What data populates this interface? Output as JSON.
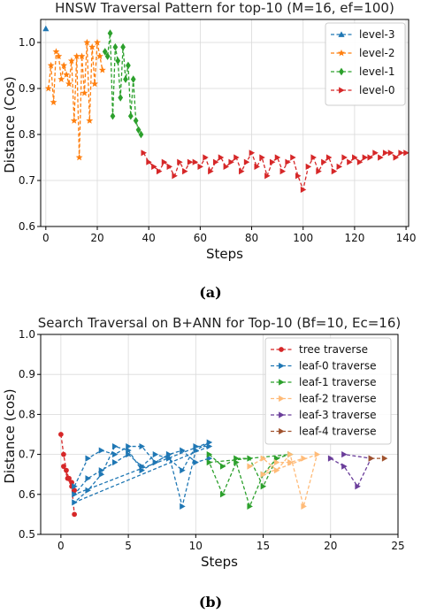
{
  "chart_data": [
    {
      "type": "line",
      "panel": "(a)",
      "title": "HNSW Traversal Pattern for top-10 (M=16, ef=100)",
      "xlabel": "Steps",
      "ylabel": "Distance (Cos)",
      "xlim": [
        -2,
        141
      ],
      "ylim": [
        0.6,
        1.05
      ],
      "xticks": [
        0,
        20,
        40,
        60,
        80,
        100,
        120,
        140
      ],
      "yticks": [
        0.6,
        0.7,
        0.8,
        0.9,
        1.0
      ],
      "grid": true,
      "legend_position": "top-right",
      "series": [
        {
          "name": "level-3",
          "color": "#1f77b4",
          "marker": "triangle-up",
          "x": [
            0
          ],
          "y": [
            1.03
          ]
        },
        {
          "name": "level-2",
          "color": "#ff7f0e",
          "marker": "star",
          "x": [
            1,
            2,
            3,
            4,
            5,
            6,
            7,
            8,
            9,
            10,
            11,
            12,
            13,
            14,
            15,
            16,
            17,
            18,
            19,
            20,
            21,
            22
          ],
          "y": [
            0.9,
            0.95,
            0.87,
            0.98,
            0.97,
            0.92,
            0.95,
            0.93,
            0.91,
            0.96,
            0.83,
            0.97,
            0.75,
            0.97,
            0.89,
            1.0,
            0.83,
            0.99,
            0.91,
            1.0,
            0.97,
            0.94
          ]
        },
        {
          "name": "level-1",
          "color": "#2ca02c",
          "marker": "diamond",
          "x": [
            23,
            24,
            25,
            26,
            27,
            28,
            29,
            30,
            31,
            32,
            33,
            34,
            35,
            36,
            37
          ],
          "y": [
            0.98,
            0.97,
            1.02,
            0.84,
            0.99,
            0.96,
            0.88,
            0.99,
            0.92,
            0.95,
            0.84,
            0.92,
            0.83,
            0.81,
            0.8
          ]
        },
        {
          "name": "level-0",
          "color": "#d62728",
          "marker": "triangle-right",
          "x": [
            38,
            40,
            42,
            44,
            46,
            48,
            50,
            52,
            54,
            56,
            58,
            60,
            62,
            64,
            66,
            68,
            70,
            72,
            74,
            76,
            78,
            80,
            82,
            84,
            86,
            88,
            90,
            92,
            94,
            96,
            98,
            100,
            102,
            104,
            106,
            108,
            110,
            112,
            114,
            116,
            118,
            120,
            122,
            124,
            126,
            128,
            130,
            132,
            134,
            136,
            138,
            140
          ],
          "y": [
            0.76,
            0.74,
            0.73,
            0.72,
            0.74,
            0.73,
            0.71,
            0.74,
            0.72,
            0.74,
            0.74,
            0.73,
            0.75,
            0.72,
            0.74,
            0.75,
            0.73,
            0.74,
            0.75,
            0.72,
            0.74,
            0.76,
            0.73,
            0.75,
            0.71,
            0.74,
            0.75,
            0.72,
            0.74,
            0.75,
            0.71,
            0.68,
            0.73,
            0.75,
            0.72,
            0.74,
            0.75,
            0.72,
            0.73,
            0.75,
            0.74,
            0.75,
            0.74,
            0.75,
            0.75,
            0.76,
            0.75,
            0.76,
            0.76,
            0.75,
            0.76,
            0.76
          ]
        }
      ]
    },
    {
      "type": "line",
      "panel": "(b)",
      "title": "Search Traversal on B+ANN for Top-10 (Bf=10, Ec=16)",
      "xlabel": "Steps",
      "ylabel": "Distance (cos)",
      "xlim": [
        -1.5,
        25
      ],
      "ylim": [
        0.5,
        1.0
      ],
      "xticks": [
        0,
        5,
        10,
        15,
        20,
        25
      ],
      "yticks": [
        0.5,
        0.6,
        0.7,
        0.8,
        0.9,
        1.0
      ],
      "grid": true,
      "legend_position": "top-right",
      "series": [
        {
          "name": "tree traverse",
          "color": "#d62728",
          "marker": "dot",
          "x": [
            0,
            0.2,
            0.4,
            0.6,
            0.8,
            1.0,
            0.2,
            0.5,
            0.8,
            1.0
          ],
          "y": [
            0.75,
            0.7,
            0.66,
            0.64,
            0.63,
            0.61,
            0.67,
            0.64,
            0.62,
            0.55
          ]
        },
        {
          "name": "leaf-0 traverse",
          "color": "#1f77b4",
          "marker": "triangle-right",
          "x": [
            1,
            2,
            3,
            4,
            5,
            6,
            7,
            8,
            9,
            10,
            11,
            1,
            2,
            3,
            4,
            5,
            6,
            7,
            8,
            9,
            10,
            11,
            1,
            2,
            3,
            4,
            5,
            6,
            7,
            8,
            9,
            10,
            11
          ],
          "y": [
            0.62,
            0.69,
            0.71,
            0.7,
            0.72,
            0.72,
            0.68,
            0.7,
            0.57,
            0.71,
            0.73,
            0.6,
            0.64,
            0.66,
            0.68,
            0.7,
            0.67,
            0.7,
            0.69,
            0.66,
            0.72,
            0.72,
            0.58,
            0.61,
            0.65,
            0.72,
            0.71,
            0.66,
            0.68,
            0.7,
            0.71,
            0.68,
            0.69
          ]
        },
        {
          "name": "leaf-1 traverse",
          "color": "#2ca02c",
          "marker": "triangle-right",
          "x": [
            11,
            12,
            13,
            14,
            15,
            16,
            17,
            11,
            12,
            13,
            14,
            15,
            16
          ],
          "y": [
            0.7,
            0.67,
            0.69,
            0.69,
            0.62,
            0.69,
            0.7,
            0.68,
            0.6,
            0.68,
            0.57,
            0.65,
            0.69
          ]
        },
        {
          "name": "leaf-2 traverse",
          "color": "#ffbb78",
          "marker": "triangle-right",
          "x": [
            14,
            15,
            16,
            17,
            18,
            19,
            15,
            16,
            17,
            18
          ],
          "y": [
            0.67,
            0.69,
            0.66,
            0.7,
            0.57,
            0.7,
            0.65,
            0.68,
            0.68,
            0.69
          ]
        },
        {
          "name": "leaf-3 traverse",
          "color": "#6a3d9a",
          "marker": "triangle-right",
          "x": [
            20,
            21,
            22,
            23,
            21
          ],
          "y": [
            0.69,
            0.67,
            0.62,
            0.69,
            0.7
          ]
        },
        {
          "name": "leaf-4 traverse",
          "color": "#a0522d",
          "marker": "triangle-right",
          "x": [
            23,
            24
          ],
          "y": [
            0.69,
            0.69
          ]
        }
      ]
    }
  ]
}
